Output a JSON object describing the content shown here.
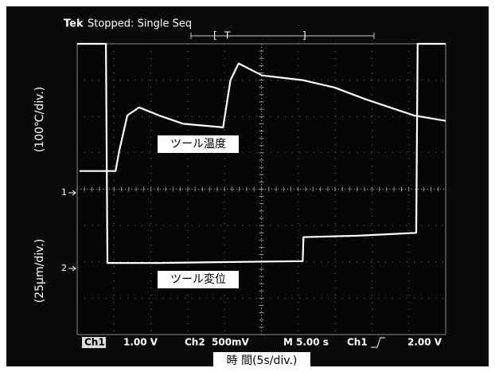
{
  "chart_data": {
    "type": "line",
    "header": {
      "brand": "Tek",
      "status": "Stopped: Single Seq"
    },
    "trigger": "T",
    "xlim": [
      0,
      50
    ],
    "ylim": [
      0,
      8
    ],
    "x_label": "時 間(5s/div.)",
    "y_labels": [
      "(100℃/div.)",
      "(25μm/div.)"
    ],
    "channel_markers": [
      "1",
      "2"
    ],
    "status_bar": [
      "Ch1",
      "1.00 V",
      "Ch2",
      "500mV",
      "M",
      "5.00 s",
      "Ch1",
      "2.00 V"
    ],
    "series": [
      {
        "name": "ツール温度",
        "color": "#ffffff",
        "x": [
          0.3,
          5.2,
          5.7,
          6.8,
          8.4,
          11.1,
          14.4,
          19.8,
          20.8,
          21.9,
          25.1,
          30.6,
          34.9,
          39.2,
          45.7,
          50
        ],
        "values": [
          4.5,
          4.5,
          5.05,
          6.03,
          6.25,
          6.03,
          5.8,
          5.7,
          7.0,
          7.46,
          7.13,
          7.0,
          6.8,
          6.47,
          6.03,
          5.88
        ]
      },
      {
        "name": "ツール変位",
        "color": "#ffffff",
        "x": [
          0,
          3.9,
          4.1,
          11.1,
          30.6,
          30.7,
          38.1,
          46,
          46.2,
          50
        ],
        "values": [
          8,
          8,
          1.97,
          1.97,
          2.02,
          2.68,
          2.72,
          2.8,
          8,
          8
        ]
      }
    ]
  }
}
